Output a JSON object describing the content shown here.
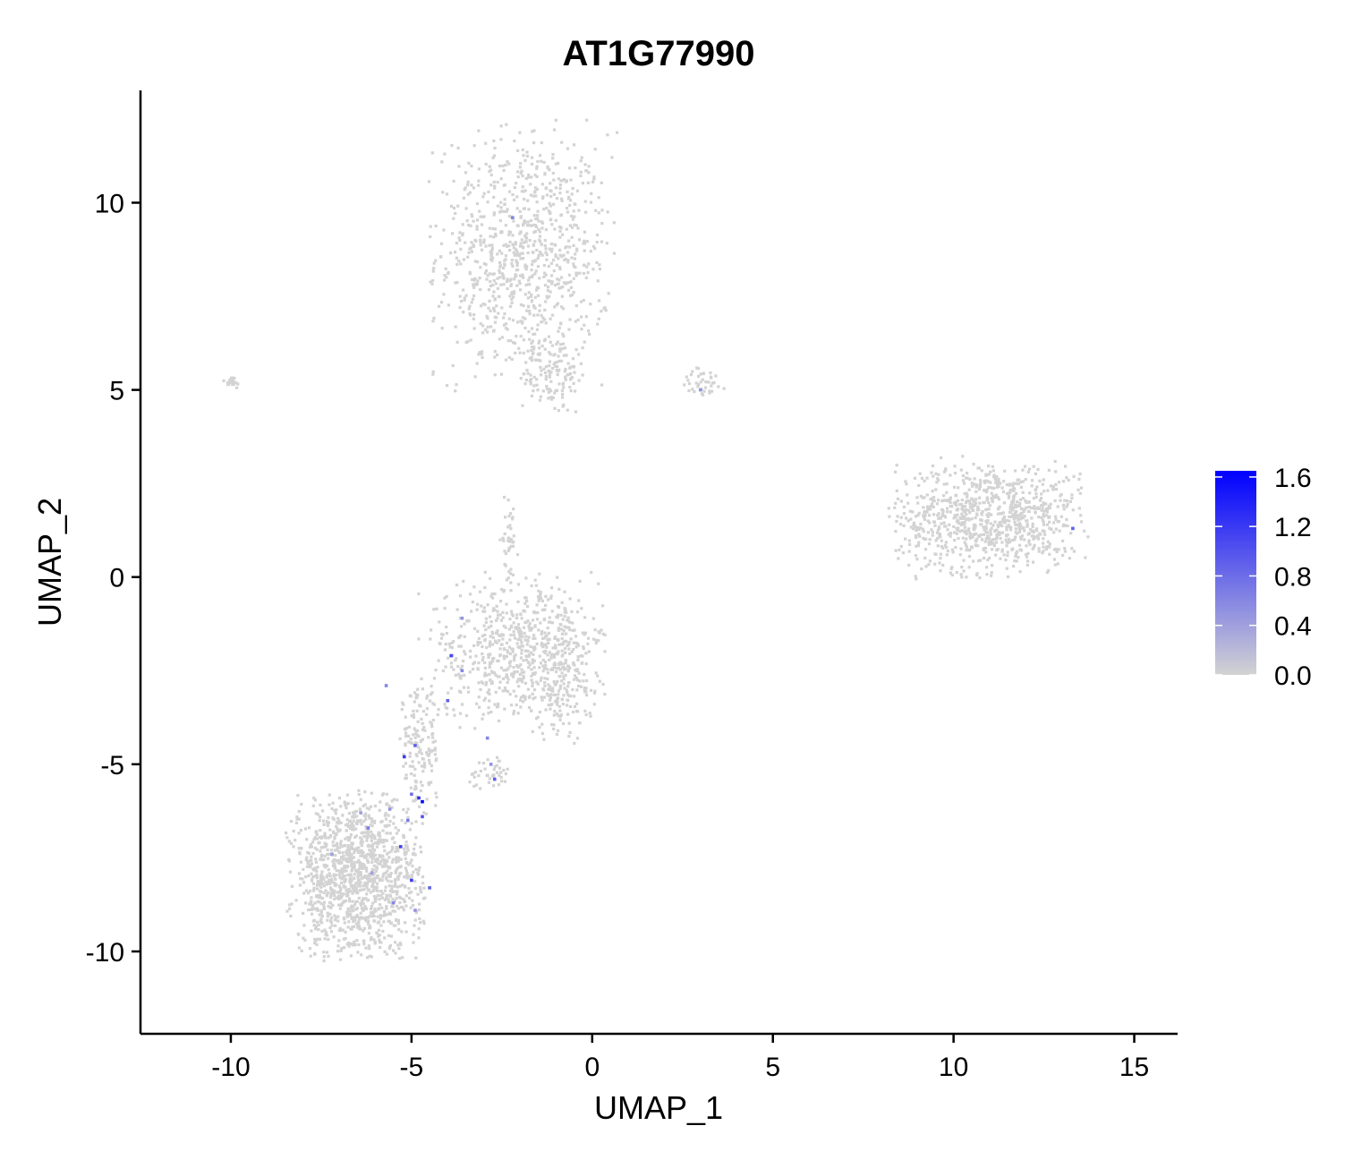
{
  "chart_data": {
    "type": "scatter",
    "title": "AT1G77990",
    "xlabel": "UMAP_1",
    "ylabel": "UMAP_2",
    "xlim": [
      -12.5,
      16.2
    ],
    "ylim": [
      -12.2,
      13.0
    ],
    "x_ticks": [
      -10,
      -5,
      0,
      5,
      10,
      15
    ],
    "x_tick_labels": [
      "-10",
      "-5",
      "0",
      "5",
      "10",
      "15"
    ],
    "y_ticks": [
      -10,
      -5,
      0,
      5,
      10
    ],
    "y_tick_labels": [
      "-10",
      "-5",
      "0",
      "5",
      "10"
    ],
    "grid": false,
    "legend": {
      "placement": "right",
      "low_color": "#d3d3d3",
      "high_color": "#0000ff",
      "min": 0.0,
      "max": 1.65,
      "ticks": [
        0.0,
        0.4,
        0.8,
        1.2,
        1.6
      ],
      "tick_labels": [
        "0.0",
        "0.4",
        "0.8",
        "1.2",
        "1.6"
      ]
    },
    "clusters": [
      {
        "cx": -1.9,
        "cy": 8.6,
        "sx": 1.6,
        "sy": 2.2,
        "n": 900
      },
      {
        "cx": -1.1,
        "cy": 5.4,
        "sx": 0.6,
        "sy": 0.7,
        "n": 120
      },
      {
        "cx": -10.0,
        "cy": 5.2,
        "sx": 0.2,
        "sy": 0.12,
        "n": 20
      },
      {
        "cx": 3.1,
        "cy": 5.2,
        "sx": 0.45,
        "sy": 0.25,
        "n": 40
      },
      {
        "cx": 11.0,
        "cy": 1.6,
        "sx": 1.7,
        "sy": 1.0,
        "n": 900
      },
      {
        "cx": -2.2,
        "cy": -2.0,
        "sx": 1.6,
        "sy": 1.3,
        "n": 600
      },
      {
        "cx": -0.8,
        "cy": -2.5,
        "sx": 0.7,
        "sy": 1.2,
        "n": 220
      },
      {
        "cx": -2.3,
        "cy": 1.0,
        "sx": 0.15,
        "sy": 0.7,
        "n": 40
      },
      {
        "cx": -4.8,
        "cy": -4.6,
        "sx": 0.4,
        "sy": 1.0,
        "n": 140
      },
      {
        "cx": -6.5,
        "cy": -8.0,
        "sx": 1.2,
        "sy": 1.4,
        "n": 1300
      },
      {
        "cx": -2.8,
        "cy": -5.2,
        "sx": 0.4,
        "sy": 0.3,
        "n": 40
      }
    ],
    "expressing_points": [
      {
        "x": -4.7,
        "y": -6.0,
        "v": 1.6
      },
      {
        "x": -4.8,
        "y": -5.9,
        "v": 1.3
      },
      {
        "x": -5.2,
        "y": -4.8,
        "v": 1.2
      },
      {
        "x": -4.9,
        "y": -4.5,
        "v": 0.9
      },
      {
        "x": -5.0,
        "y": -5.8,
        "v": 0.8
      },
      {
        "x": -4.7,
        "y": -6.4,
        "v": 1.0
      },
      {
        "x": -5.1,
        "y": -6.5,
        "v": 0.7
      },
      {
        "x": -5.3,
        "y": -7.2,
        "v": 1.1
      },
      {
        "x": -5.0,
        "y": -8.1,
        "v": 1.2
      },
      {
        "x": -4.5,
        "y": -8.3,
        "v": 0.9
      },
      {
        "x": -5.5,
        "y": -8.7,
        "v": 0.6
      },
      {
        "x": -4.9,
        "y": -8.9,
        "v": 0.5
      },
      {
        "x": -5.6,
        "y": -6.2,
        "v": 0.5
      },
      {
        "x": -6.2,
        "y": -6.7,
        "v": 0.7
      },
      {
        "x": -6.4,
        "y": -6.3,
        "v": 0.4
      },
      {
        "x": -6.1,
        "y": -7.9,
        "v": 0.4
      },
      {
        "x": -7.2,
        "y": -7.4,
        "v": 0.4
      },
      {
        "x": -5.7,
        "y": -2.9,
        "v": 0.6
      },
      {
        "x": -4.0,
        "y": -3.3,
        "v": 0.9
      },
      {
        "x": -3.9,
        "y": -2.1,
        "v": 1.1
      },
      {
        "x": -3.6,
        "y": -2.5,
        "v": 0.6
      },
      {
        "x": -3.6,
        "y": -1.1,
        "v": 0.5
      },
      {
        "x": -2.9,
        "y": -4.3,
        "v": 0.6
      },
      {
        "x": -2.7,
        "y": -5.4,
        "v": 0.9
      },
      {
        "x": -2.8,
        "y": -5.0,
        "v": 0.5
      },
      {
        "x": -2.2,
        "y": 9.6,
        "v": 0.6
      },
      {
        "x": 3.0,
        "y": 5.0,
        "v": 0.5
      },
      {
        "x": 13.3,
        "y": 1.3,
        "v": 0.9
      }
    ]
  }
}
